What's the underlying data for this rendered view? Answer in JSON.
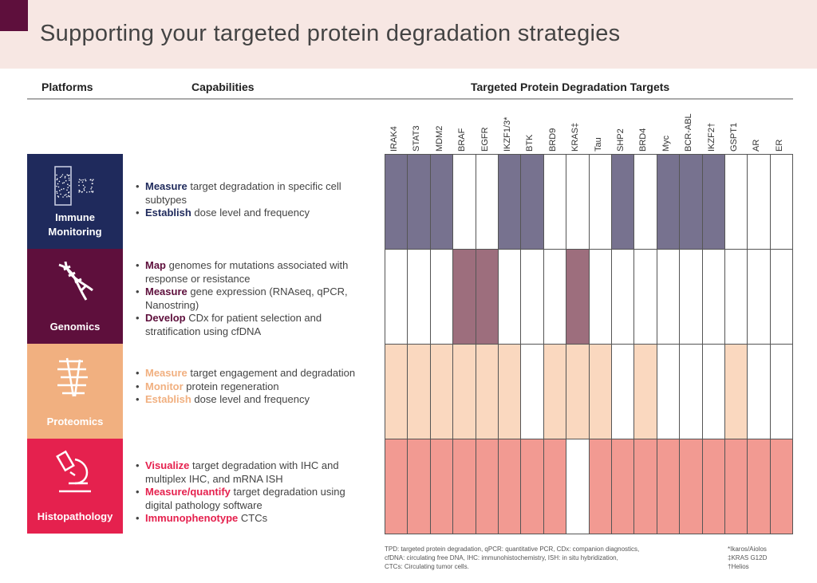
{
  "title": "Supporting your targeted protein degradation strategies",
  "headers": {
    "platforms": "Platforms",
    "capabilities": "Capabilities",
    "targets": "Targeted Protein Degradation Targets"
  },
  "targets": [
    "IRAK4",
    "STAT3",
    "MDM2",
    "BRAF",
    "EGFR",
    "IKZF1/3*",
    "BTK",
    "BRD9",
    "KRAS‡",
    "Tau",
    "SHP2",
    "BRD4",
    "Myc",
    "BCR-ABL",
    "IKZF2†",
    "GSPT1",
    "AR",
    "ER"
  ],
  "platforms": [
    {
      "name": "Immune Monitoring",
      "tile_color": "#1f2a5c",
      "cell_color": "#77728f",
      "accent": "#1f2a5c",
      "icon": "flow-cytometry-icon",
      "capabilities": [
        {
          "bold": "Measure",
          "text": " target degradation in specific cell subtypes"
        },
        {
          "bold": "Establish",
          "text": " dose level and frequency"
        }
      ],
      "coverage": [
        1,
        1,
        1,
        0,
        0,
        1,
        1,
        0,
        0,
        0,
        1,
        0,
        1,
        1,
        1,
        0,
        0,
        0
      ]
    },
    {
      "name": "Genomics",
      "tile_color": "#5e0f3c",
      "cell_color": "#9d6e7d",
      "accent": "#5e0f3c",
      "icon": "dna-icon",
      "capabilities": [
        {
          "bold": "Map",
          "text": " genomes for mutations associated with response or resistance"
        },
        {
          "bold": "Measure",
          "text": " gene expression (RNAseq, qPCR, Nanostring)"
        },
        {
          "bold": "Develop",
          "text": " CDx for patient selection and stratification using cfDNA"
        }
      ],
      "coverage": [
        0,
        0,
        0,
        1,
        1,
        0,
        0,
        0,
        1,
        0,
        0,
        0,
        0,
        0,
        0,
        0,
        0,
        0
      ]
    },
    {
      "name": "Proteomics",
      "tile_color": "#f1b080",
      "cell_color": "#fad8bf",
      "accent": "#f1b080",
      "icon": "protein-icon",
      "capabilities": [
        {
          "bold": "Measure",
          "text": " target engagement and degradation"
        },
        {
          "bold": "Monitor",
          "text": " protein regeneration"
        },
        {
          "bold": "Establish",
          "text": " dose level and frequency"
        }
      ],
      "coverage": [
        1,
        1,
        1,
        1,
        1,
        1,
        0,
        1,
        1,
        1,
        0,
        1,
        0,
        0,
        0,
        1,
        0,
        0
      ]
    },
    {
      "name": "Histopathology",
      "tile_color": "#e5214e",
      "cell_color": "#f29a92",
      "accent": "#e5214e",
      "icon": "microscope-icon",
      "capabilities": [
        {
          "bold": "Visualize",
          "text": " target degradation with IHC and multiplex IHC, and mRNA ISH"
        },
        {
          "bold": "Measure/quantify",
          "text": " target degradation using digital pathology software"
        },
        {
          "bold": "Immunophenotype",
          "text": " CTCs"
        }
      ],
      "coverage": [
        1,
        1,
        1,
        1,
        1,
        1,
        1,
        1,
        0,
        1,
        1,
        1,
        1,
        1,
        1,
        1,
        1,
        1
      ]
    }
  ],
  "footnotes": {
    "abbrev": [
      "TPD: targeted protein degradation, qPCR: quantitative PCR, CDx: companion diagnostics,",
      "cfDNA: circulating free DNA, IHC: immunohistochemistry, ISH: in situ hybridization,",
      "CTCs: Circulating tumor cells."
    ],
    "symbols": [
      "*Ikaros/Aiolos",
      "‡KRAS G12D",
      "†Helios"
    ]
  }
}
